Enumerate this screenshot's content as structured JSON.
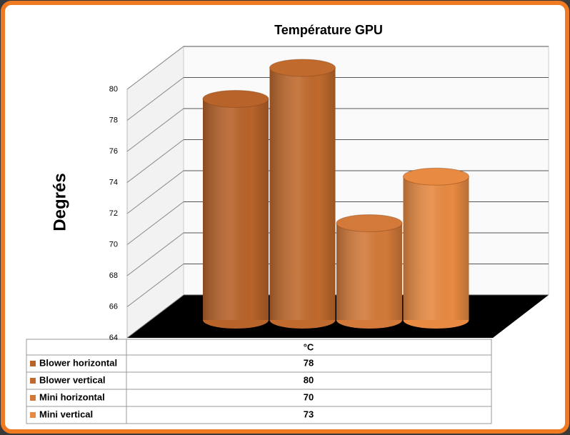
{
  "chart_data": {
    "type": "bar",
    "title": "Température GPU",
    "y_label": "Degrés",
    "categories": [
      "°C"
    ],
    "series": [
      {
        "name": "Blower horizontal",
        "color": "#b8632a",
        "values": [
          78
        ]
      },
      {
        "name": "Blower vertical",
        "color": "#c06a2d",
        "values": [
          80
        ]
      },
      {
        "name": "Mini horizontal",
        "color": "#d37a3a",
        "values": [
          70
        ]
      },
      {
        "name": "Mini vertical",
        "color": "#e88a42",
        "values": [
          73
        ]
      }
    ],
    "ylim": [
      64,
      80
    ],
    "yticks": [
      64,
      66,
      68,
      70,
      72,
      74,
      76,
      78,
      80
    ],
    "grid": true
  }
}
